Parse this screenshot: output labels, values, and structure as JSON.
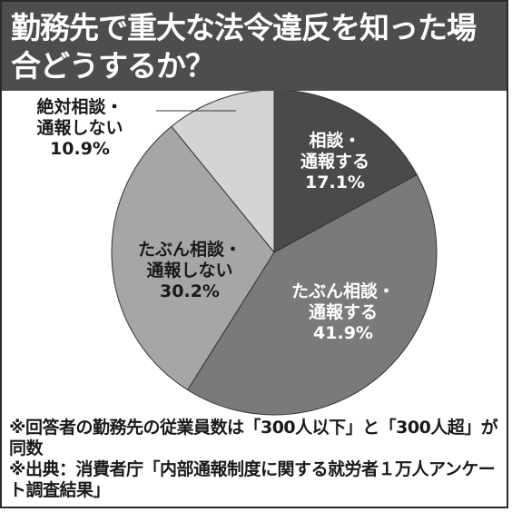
{
  "title": "勤務先で重大な法令違反を知った場合どうするか？",
  "chart_data": {
    "type": "pie",
    "title": "勤務先で重大な法令違反を知った場合どうするか？",
    "slices": [
      {
        "label_lines": [
          "相談・",
          "通報する"
        ],
        "value": 17.1,
        "value_label": "17.1%",
        "color": "#4a4a4a",
        "text_color": "#ffffff"
      },
      {
        "label_lines": [
          "たぶん相談・",
          "通報する"
        ],
        "value": 41.9,
        "value_label": "41.9%",
        "color": "#7a7a7a",
        "text_color": "#ffffff"
      },
      {
        "label_lines": [
          "たぶん相談・",
          "通報しない"
        ],
        "value": 30.2,
        "value_label": "30.2%",
        "color": "#a6a6a6",
        "text_color": "#1a1a1a"
      },
      {
        "label_lines": [
          "絶対相談・",
          "通報しない"
        ],
        "value": 10.9,
        "value_label": "10.9%",
        "color": "#d4d4d4",
        "text_color": "#1a1a1a"
      }
    ],
    "start": "12 o'clock",
    "direction": "clockwise"
  },
  "notes": [
    "※回答者の勤務先の従業員数は「300人以下」と「300人超」が同数",
    "※出典：消費者庁「内部通報制度に関する就労者１万人アンケート調査結果」"
  ]
}
